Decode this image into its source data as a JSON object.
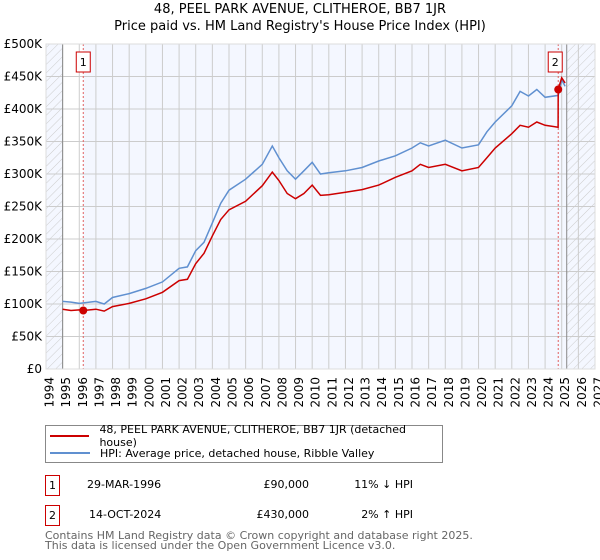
{
  "chart_data": {
    "type": "line",
    "title": "48, PEEL PARK AVENUE, CLITHEROE, BB7 1JR",
    "subtitle": "Price paid vs. HM Land Registry's House Price Index (HPI)",
    "xlim": [
      1994,
      2027
    ],
    "ylim": [
      0,
      500000
    ],
    "x_ticks": [
      "1994",
      "1995",
      "1996",
      "1997",
      "1998",
      "1999",
      "2000",
      "2001",
      "2002",
      "2003",
      "2004",
      "2005",
      "2006",
      "2007",
      "2008",
      "2009",
      "2010",
      "2011",
      "2012",
      "2013",
      "2014",
      "2015",
      "2016",
      "2017",
      "2018",
      "2019",
      "2020",
      "2021",
      "2022",
      "2023",
      "2024",
      "2025",
      "2026",
      "2027"
    ],
    "y_ticks": [
      {
        "v": 0,
        "label": "£0"
      },
      {
        "v": 50000,
        "label": "£50K"
      },
      {
        "v": 100000,
        "label": "£100K"
      },
      {
        "v": 150000,
        "label": "£150K"
      },
      {
        "v": 200000,
        "label": "£200K"
      },
      {
        "v": 250000,
        "label": "£250K"
      },
      {
        "v": 300000,
        "label": "£300K"
      },
      {
        "v": 350000,
        "label": "£350K"
      },
      {
        "v": 400000,
        "label": "£400K"
      },
      {
        "v": 450000,
        "label": "£450K"
      },
      {
        "v": 500000,
        "label": "£500K"
      }
    ],
    "grid": true,
    "hatched_before": 1995,
    "hatched_after": 2025.3,
    "series": [
      {
        "name": "48, PEEL PARK AVENUE, CLITHEROE, BB7 1JR (detached house)",
        "color": "#cc0000",
        "x": [
          1995,
          1995.5,
          1996,
          1996.24,
          1997,
          1997.5,
          1998,
          1999,
          2000,
          2001,
          2002,
          2002.5,
          2003,
          2003.5,
          2004,
          2004.5,
          2005,
          2006,
          2007,
          2007.6,
          2008,
          2008.5,
          2009,
          2009.5,
          2010,
          2010.5,
          2011,
          2012,
          2013,
          2014,
          2015,
          2016,
          2016.5,
          2017,
          2018,
          2019,
          2020,
          2020.5,
          2021,
          2022,
          2022.5,
          2023,
          2023.5,
          2024,
          2024.78,
          2024.79,
          2025,
          2025.2
        ],
        "y": [
          92000,
          90000,
          91000,
          90000,
          92000,
          89000,
          96000,
          101000,
          108000,
          118000,
          136000,
          138000,
          162000,
          178000,
          205000,
          230000,
          245000,
          258000,
          282000,
          303000,
          290000,
          270000,
          262000,
          270000,
          283000,
          267000,
          268000,
          272000,
          276000,
          283000,
          295000,
          305000,
          315000,
          310000,
          315000,
          305000,
          310000,
          325000,
          340000,
          362000,
          375000,
          372000,
          380000,
          375000,
          372000,
          430000,
          448000,
          440000
        ]
      },
      {
        "name": "HPI: Average price, detached house, Ribble Valley",
        "color": "#6090d0",
        "x": [
          1995,
          1995.5,
          1996,
          1997,
          1997.5,
          1998,
          1999,
          2000,
          2001,
          2002,
          2002.5,
          2003,
          2003.5,
          2004,
          2004.5,
          2005,
          2006,
          2007,
          2007.6,
          2008,
          2008.5,
          2009,
          2009.5,
          2010,
          2010.5,
          2011,
          2012,
          2013,
          2014,
          2015,
          2016,
          2016.5,
          2017,
          2018,
          2019,
          2020,
          2020.5,
          2021,
          2022,
          2022.5,
          2023,
          2023.5,
          2024,
          2024.79,
          2025,
          2025.2
        ],
        "y": [
          104000,
          103000,
          101000,
          104000,
          100000,
          110000,
          116000,
          124000,
          134000,
          155000,
          157000,
          182000,
          195000,
          225000,
          255000,
          275000,
          292000,
          315000,
          343000,
          325000,
          305000,
          292000,
          305000,
          318000,
          300000,
          302000,
          305000,
          310000,
          320000,
          328000,
          340000,
          348000,
          343000,
          352000,
          340000,
          345000,
          365000,
          380000,
          405000,
          427000,
          420000,
          430000,
          418000,
          421000,
          445000,
          435000
        ]
      }
    ],
    "annotations": [
      {
        "label": "1",
        "x": 1996.24,
        "y": 90000
      },
      {
        "label": "2",
        "x": 2024.79,
        "y": 430000
      }
    ]
  },
  "legend": {
    "property": "48, PEEL PARK AVENUE, CLITHEROE, BB7 1JR (detached house)",
    "hpi": "HPI: Average price, detached house, Ribble Valley"
  },
  "transactions": [
    {
      "num": "1",
      "date": "29-MAR-1996",
      "price": "£90,000",
      "hpi": "11% ↓ HPI"
    },
    {
      "num": "2",
      "date": "14-OCT-2024",
      "price": "£430,000",
      "hpi": "2% ↑ HPI"
    }
  ],
  "footer": {
    "line1": "Contains HM Land Registry data © Crown copyright and database right 2025.",
    "line2": "This data is licensed under the Open Government Licence v3.0."
  }
}
